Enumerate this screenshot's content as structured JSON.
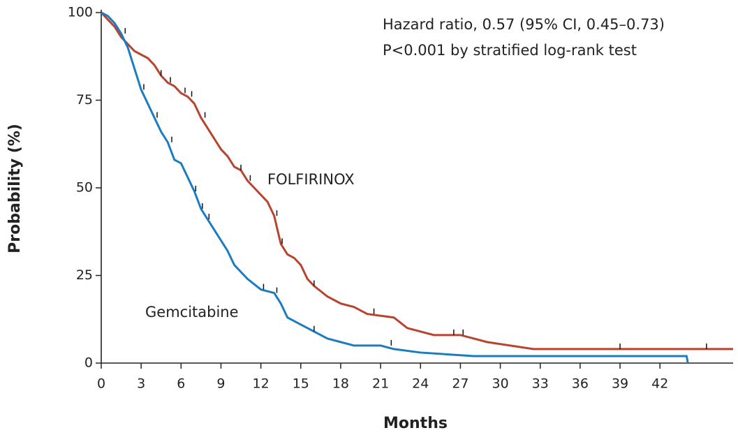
{
  "chart_data": {
    "type": "line",
    "x_label": "Months",
    "y_label": "Probability (%)",
    "annotations": [
      "Hazard ratio, 0.57 (95% CI, 0.45–0.73)",
      "P<0.001 by stratified log-rank test"
    ],
    "xlim": [
      0,
      47.5
    ],
    "ylim": [
      0,
      100
    ],
    "xticks": [
      0,
      3,
      6,
      9,
      12,
      15,
      18,
      21,
      24,
      27,
      30,
      33,
      36,
      39,
      42
    ],
    "yticks": [
      0,
      25,
      50,
      75,
      100
    ],
    "series": [
      {
        "name": "FOLFIRINOX",
        "color": "#b8432f",
        "x": [
          0,
          0.5,
          1,
          1.5,
          2,
          2.5,
          3,
          3.5,
          4,
          4.5,
          5,
          5.5,
          6,
          6.5,
          7,
          7.5,
          8,
          8.5,
          9,
          9.5,
          10,
          10.5,
          11,
          11.5,
          12,
          12.5,
          13,
          13.5,
          14,
          14.5,
          15,
          15.5,
          16,
          17,
          18,
          19,
          20,
          22,
          23,
          25,
          27,
          28,
          29,
          32.5,
          47.5
        ],
        "values": [
          100,
          98,
          96,
          93,
          91,
          89,
          88,
          87,
          85,
          82,
          80,
          79,
          77,
          76,
          74,
          70,
          67,
          64,
          61,
          59,
          56,
          55,
          52,
          50,
          48,
          46,
          42,
          34,
          31,
          30,
          28,
          24,
          22,
          19,
          17,
          16,
          14,
          13,
          10,
          8,
          8,
          7,
          6,
          4,
          4
        ],
        "censored": [
          4.5,
          5.2,
          6.3,
          6.8,
          7.8,
          10.5,
          11.2,
          13.2,
          13.6,
          16,
          20.5,
          26.5,
          27.2,
          39,
          45.5
        ]
      },
      {
        "name": "Gemcitabine",
        "color": "#1b7dbf",
        "x": [
          0,
          0.5,
          1,
          1.5,
          2,
          2.5,
          3,
          3.5,
          4,
          4.5,
          5,
          5.5,
          6,
          6.5,
          7,
          7.5,
          8,
          8.5,
          9,
          9.5,
          10,
          10.5,
          11,
          12,
          13,
          13.5,
          14,
          15,
          16,
          17,
          18,
          19,
          21,
          22,
          24,
          28,
          44,
          44.1
        ],
        "values": [
          100,
          99,
          97,
          94,
          90,
          84,
          78,
          74,
          70,
          66,
          63,
          58,
          57,
          53,
          49,
          44,
          41,
          38,
          35,
          32,
          28,
          26,
          24,
          21,
          20,
          17,
          13,
          11,
          9,
          7,
          6,
          5,
          5,
          4,
          3,
          2,
          2,
          0
        ],
        "censored": [
          1.8,
          3.2,
          4.2,
          5.3,
          7.1,
          7.6,
          8.1,
          12.2,
          13.2,
          16,
          21.8
        ]
      }
    ]
  }
}
